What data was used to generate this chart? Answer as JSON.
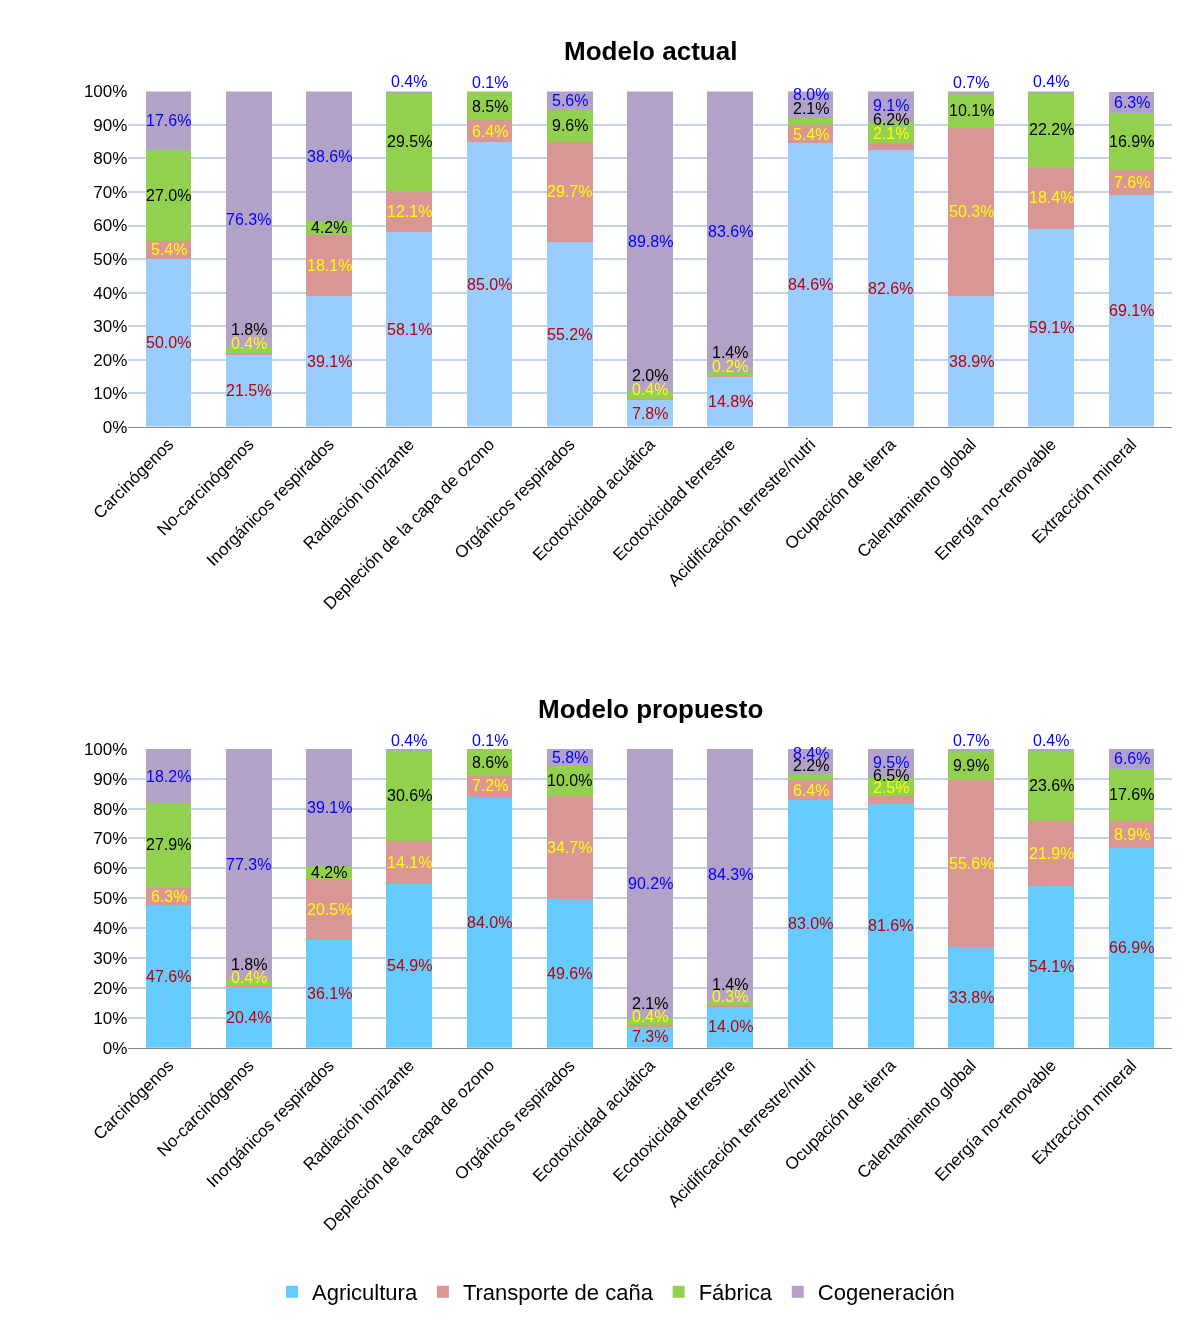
{
  "chart_data": [
    {
      "type": "bar",
      "title": "Modelo actual",
      "stacked": true,
      "grid": "y",
      "legend": false,
      "categories": [
        "Carcinógenos",
        "No-carcinógenos",
        "Inorgánicos respirados",
        "Radiación ionizante",
        "Depleción de la capa de ozono",
        "Orgánicos respirados",
        "Ecotoxicidad acuática",
        "Ecotoxicidad terrestre",
        "Acidificación terrestre/nutri",
        "Ocupación de tierra",
        "Calentamiento global",
        "Energía no-renovable",
        "Extracción mineral"
      ],
      "ylim": [
        0,
        100
      ],
      "yticks": [
        {
          "value": 0,
          "label": "0%"
        },
        {
          "value": 10,
          "label": "10%"
        },
        {
          "value": 20,
          "label": "20%"
        },
        {
          "value": 30,
          "label": "30%"
        },
        {
          "value": 40,
          "label": "40%"
        },
        {
          "value": 50,
          "label": "50%"
        },
        {
          "value": 60,
          "label": "60%"
        },
        {
          "value": 70,
          "label": "70%"
        },
        {
          "value": 80,
          "label": "80%"
        },
        {
          "value": 90,
          "label": "90%"
        },
        {
          "value": 100,
          "label": "100%"
        }
      ],
      "series": [
        {
          "color": "#99ccff",
          "values": [
            50.0,
            21.5,
            39.1,
            58.1,
            85.0,
            55.2,
            7.8,
            14.8,
            84.6,
            82.6,
            38.9,
            59.1,
            69.1
          ],
          "value_labels": [
            "50.0%",
            "21.5%",
            "39.1%",
            "58.1%",
            "85.0%",
            "55.2%",
            "7.8%",
            "14.8%",
            "84.6%",
            "82.6%",
            "38.9%",
            "59.1%",
            "69.1%"
          ]
        },
        {
          "color": "#d99694",
          "values": [
            5.4,
            0.4,
            18.1,
            12.1,
            6.4,
            29.7,
            0.4,
            0.2,
            5.4,
            2.1,
            50.3,
            18.4,
            7.6
          ],
          "value_labels": [
            "5.4%",
            "0.4%",
            "18.1%",
            "12.1%",
            "6.4%",
            "29.7%",
            "0.4%",
            "0.2%",
            "5.4%",
            "2.1%",
            "50.3%",
            "18.4%",
            "7.6%"
          ]
        },
        {
          "color": "#92d050",
          "values": [
            27.0,
            1.8,
            4.2,
            29.5,
            8.5,
            9.6,
            2.0,
            1.4,
            2.1,
            6.2,
            10.1,
            22.2,
            16.9
          ],
          "value_labels": [
            "27.0%",
            "1.8%",
            "4.2%",
            "29.5%",
            "8.5%",
            "9.6%",
            "2.0%",
            "1.4%",
            "2.1%",
            "6.2%",
            "10.1%",
            "22.2%",
            "16.9%"
          ]
        },
        {
          "color": "#b3a2c7",
          "values": [
            17.6,
            76.3,
            38.6,
            0.4,
            0.1,
            5.6,
            89.8,
            83.6,
            8.0,
            9.1,
            0.7,
            0.4,
            6.3
          ],
          "value_labels": [
            "17.6%",
            "76.3%",
            "38.6%",
            "0.4%",
            "0.1%",
            "5.6%",
            "89.8%",
            "83.6%",
            "8.0%",
            "9.1%",
            "0.7%",
            "0.4%",
            "6.3%"
          ]
        }
      ]
    },
    {
      "type": "bar",
      "title": "Modelo propuesto",
      "stacked": true,
      "grid": "y",
      "legend": "bottom",
      "categories": [
        "Carcinógenos",
        "No-carcinógenos",
        "Inorgánicos respirados",
        "Radiación ionizante",
        "Depleción de la capa de ozono",
        "Orgánicos respirados",
        "Ecotoxicidad acuática",
        "Ecotoxicidad terrestre",
        "Acidificación terrestre/nutri",
        "Ocupación de tierra",
        "Calentamiento global",
        "Energía no-renovable",
        "Extracción mineral"
      ],
      "ylim": [
        0,
        100
      ],
      "yticks": [
        {
          "value": 0,
          "label": "0%"
        },
        {
          "value": 10,
          "label": "10%"
        },
        {
          "value": 20,
          "label": "20%"
        },
        {
          "value": 30,
          "label": "30%"
        },
        {
          "value": 40,
          "label": "40%"
        },
        {
          "value": 50,
          "label": "50%"
        },
        {
          "value": 60,
          "label": "60%"
        },
        {
          "value": 70,
          "label": "70%"
        },
        {
          "value": 80,
          "label": "80%"
        },
        {
          "value": 90,
          "label": "90%"
        },
        {
          "value": 100,
          "label": "100%"
        }
      ],
      "series": [
        {
          "name": "Agricultura",
          "color": "#66ccff",
          "values": [
            47.6,
            20.4,
            36.1,
            54.9,
            84.0,
            49.6,
            7.3,
            14.0,
            83.0,
            81.6,
            33.8,
            54.1,
            66.9
          ],
          "value_labels": [
            "47.6%",
            "20.4%",
            "36.1%",
            "54.9%",
            "84.0%",
            "49.6%",
            "7.3%",
            "14.0%",
            "83.0%",
            "81.6%",
            "33.8%",
            "54.1%",
            "66.9%"
          ]
        },
        {
          "name": "Transporte de caña",
          "color": "#d99694",
          "values": [
            6.3,
            0.4,
            20.5,
            14.1,
            7.2,
            34.7,
            0.4,
            0.3,
            6.4,
            2.5,
            55.6,
            21.9,
            8.9
          ],
          "value_labels": [
            "6.3%",
            "0.4%",
            "20.5%",
            "14.1%",
            "7.2%",
            "34.7%",
            "0.4%",
            "0.3%",
            "6.4%",
            "2.5%",
            "55.6%",
            "21.9%",
            "8.9%"
          ]
        },
        {
          "name": "Fábrica",
          "color": "#92d050",
          "values": [
            27.9,
            1.8,
            4.2,
            30.6,
            8.6,
            10.0,
            2.1,
            1.4,
            2.2,
            6.5,
            9.9,
            23.6,
            17.6
          ],
          "value_labels": [
            "27.9%",
            "1.8%",
            "4.2%",
            "30.6%",
            "8.6%",
            "10.0%",
            "2.1%",
            "1.4%",
            "2.2%",
            "6.5%",
            "9.9%",
            "23.6%",
            "17.6%"
          ]
        },
        {
          "name": "Cogeneración",
          "color": "#b3a2c7",
          "values": [
            18.2,
            77.3,
            39.1,
            0.4,
            0.1,
            5.8,
            90.2,
            84.3,
            8.4,
            9.5,
            0.7,
            0.4,
            6.6
          ],
          "value_labels": [
            "18.2%",
            "77.3%",
            "39.1%",
            "0.4%",
            "0.1%",
            "5.8%",
            "90.2%",
            "84.3%",
            "8.4%",
            "9.5%",
            "0.7%",
            "0.4%",
            "6.6%"
          ]
        }
      ]
    }
  ]
}
